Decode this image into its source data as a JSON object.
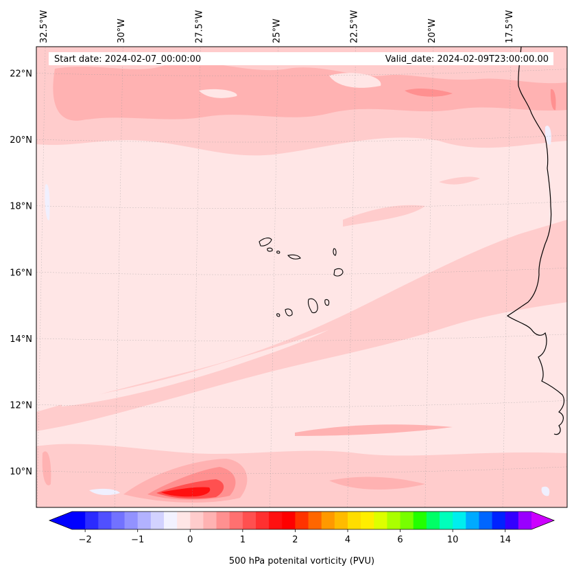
{
  "map": {
    "title_start": "Start date: 2024-02-07_00:00:00",
    "title_valid": "Valid_date: 2024-02-09T23:00:00.00",
    "lon_labels": [
      "32.5°W",
      "30°W",
      "27.5°W",
      "25°W",
      "22.5°W",
      "20°W",
      "17.5°W"
    ],
    "lat_labels": [
      "22°N",
      "20°N",
      "18°N",
      "16°N",
      "14°N",
      "12°N",
      "10°N"
    ],
    "lon_values": [
      -32.5,
      -30,
      -27.5,
      -25,
      -22.5,
      -20,
      -17.5
    ],
    "lat_values": [
      22,
      20,
      18,
      16,
      14,
      12,
      10
    ],
    "extent": {
      "lon_min": -32.7,
      "lon_max": -15.6,
      "lat_min": 8.9,
      "lat_max": 22.8
    },
    "gridlines": true,
    "coastline_color": "#000000",
    "region_features": [
      "Cape Verde islands",
      "West African coast"
    ]
  },
  "colorbar": {
    "label": "500 hPa potenital vorticity (PVU)",
    "tick_labels": [
      "−2",
      "−1",
      "0",
      "1",
      "2",
      "4",
      "6",
      "10",
      "14"
    ],
    "extend": "both",
    "colors": [
      "#0000ff",
      "#2b2bff",
      "#5050ff",
      "#7272ff",
      "#9292ff",
      "#b2b2ff",
      "#d2d2ff",
      "#f2f2ff",
      "#ffe6e6",
      "#ffcccc",
      "#ffb2b2",
      "#ff9090",
      "#ff7070",
      "#ff5050",
      "#ff3030",
      "#ff1010",
      "#ff0000",
      "#ff3300",
      "#ff6600",
      "#ff9900",
      "#ffbb00",
      "#ffdd00",
      "#ffee00",
      "#ddff00",
      "#aaff00",
      "#77ff00",
      "#22ff00",
      "#00ff66",
      "#00ffbb",
      "#00eeee",
      "#00aaff",
      "#0066ff",
      "#0022ff",
      "#3300ff",
      "#9900ff"
    ],
    "min_color": "#0000ff",
    "max_color": "#cc00ff"
  },
  "field_colors": {
    "lightest": "#ffe6e6",
    "light": "#ffcccc",
    "medium": "#ffb2b2",
    "strong": "#ff9090",
    "very_strong": "#ff5050",
    "max": "#ff1010",
    "negative": "#f0f0ff"
  }
}
